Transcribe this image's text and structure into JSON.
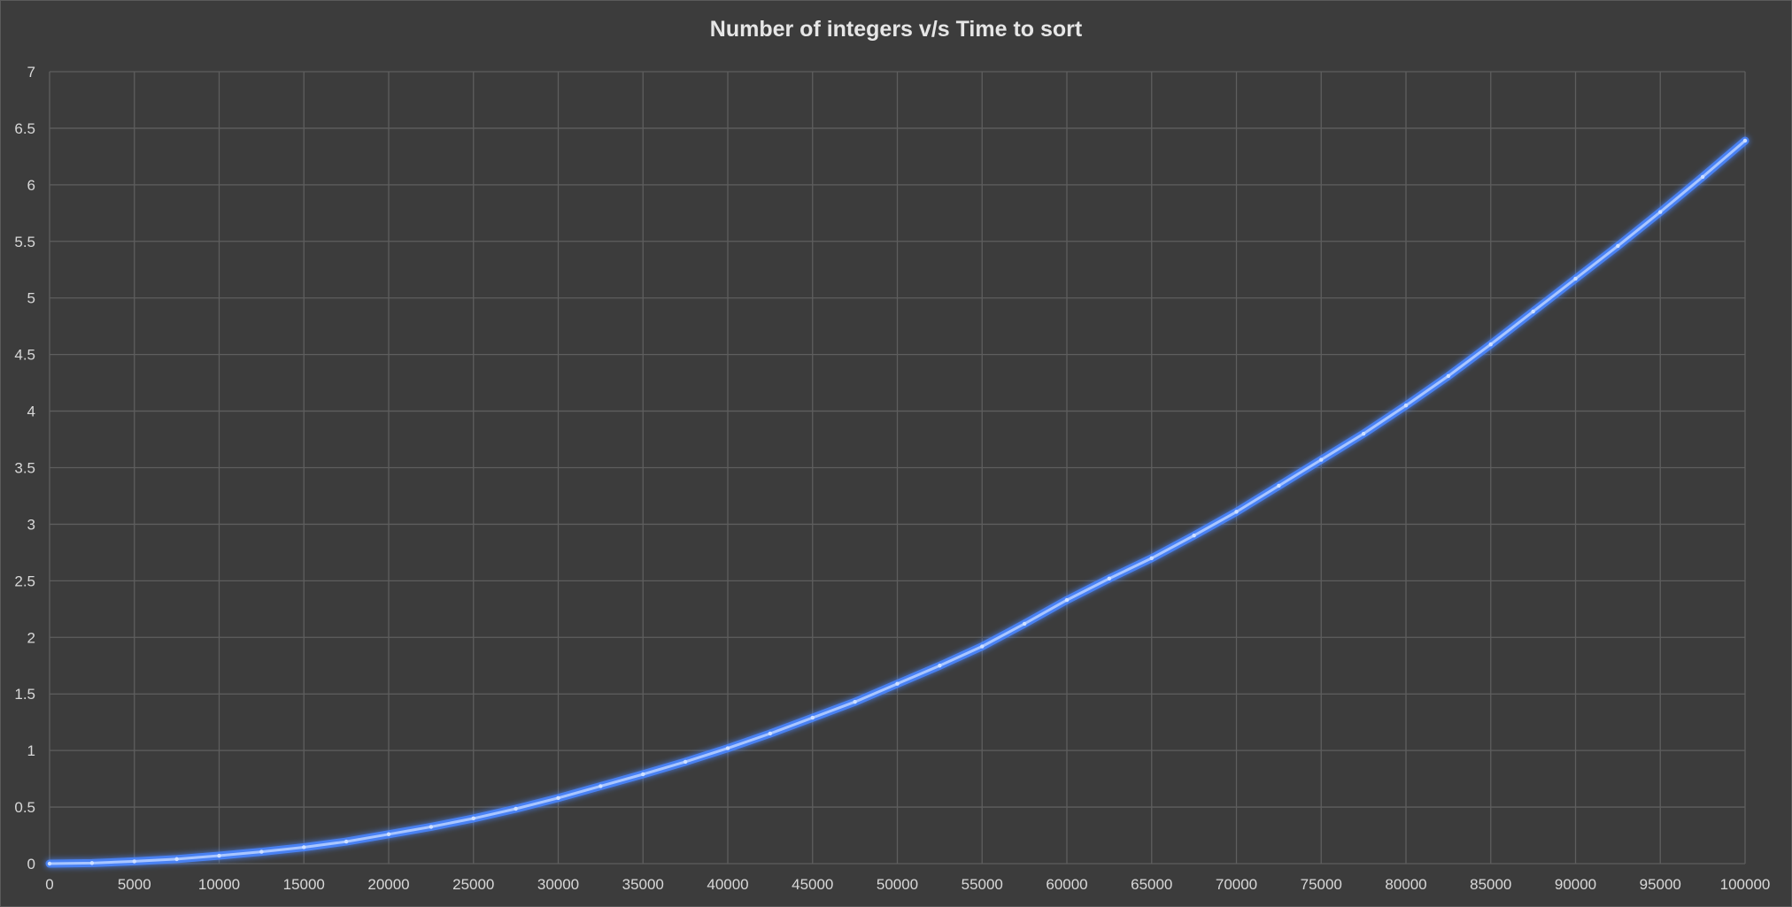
{
  "chart_data": {
    "type": "line",
    "title": "Number of integers v/s Time to sort",
    "xlabel": "",
    "ylabel": "",
    "xlim": [
      0,
      100000
    ],
    "ylim": [
      0,
      7
    ],
    "x_ticks": [
      0,
      5000,
      10000,
      15000,
      20000,
      25000,
      30000,
      35000,
      40000,
      45000,
      50000,
      55000,
      60000,
      65000,
      70000,
      75000,
      80000,
      85000,
      90000,
      95000,
      100000
    ],
    "y_ticks": [
      0,
      0.5,
      1,
      1.5,
      2,
      2.5,
      3,
      3.5,
      4,
      4.5,
      5,
      5.5,
      6,
      6.5,
      7
    ],
    "x_tick_labels": [
      "0",
      "5000",
      "10000",
      "15000",
      "20000",
      "25000",
      "30000",
      "35000",
      "40000",
      "45000",
      "50000",
      "55000",
      "60000",
      "65000",
      "70000",
      "75000",
      "80000",
      "85000",
      "90000",
      "95000",
      "100000"
    ],
    "y_tick_labels": [
      "0",
      "0.5",
      "1",
      "1.5",
      "2",
      "2.5",
      "3",
      "3.5",
      "4",
      "4.5",
      "5",
      "5.5",
      "6",
      "6.5",
      "7"
    ],
    "grid": true,
    "legend": "none",
    "series": [
      {
        "color": "#4a86ff",
        "x": [
          0,
          2500,
          5000,
          7500,
          10000,
          12500,
          15000,
          17500,
          20000,
          22500,
          25000,
          27500,
          30000,
          32500,
          35000,
          37500,
          40000,
          42500,
          45000,
          47500,
          50000,
          52500,
          55000,
          57500,
          60000,
          62500,
          65000,
          67500,
          70000,
          72500,
          75000,
          77500,
          80000,
          82500,
          85000,
          87500,
          90000,
          92500,
          95000,
          97500,
          100000
        ],
        "y": [
          0,
          0.005,
          0.02,
          0.04,
          0.07,
          0.105,
          0.145,
          0.195,
          0.26,
          0.325,
          0.4,
          0.485,
          0.58,
          0.685,
          0.79,
          0.9,
          1.02,
          1.15,
          1.29,
          1.43,
          1.59,
          1.75,
          1.92,
          2.12,
          2.33,
          2.52,
          2.7,
          2.9,
          3.11,
          3.34,
          3.57,
          3.8,
          4.05,
          4.31,
          4.59,
          4.88,
          5.17,
          5.46,
          5.76,
          6.07,
          6.39
        ]
      }
    ]
  }
}
